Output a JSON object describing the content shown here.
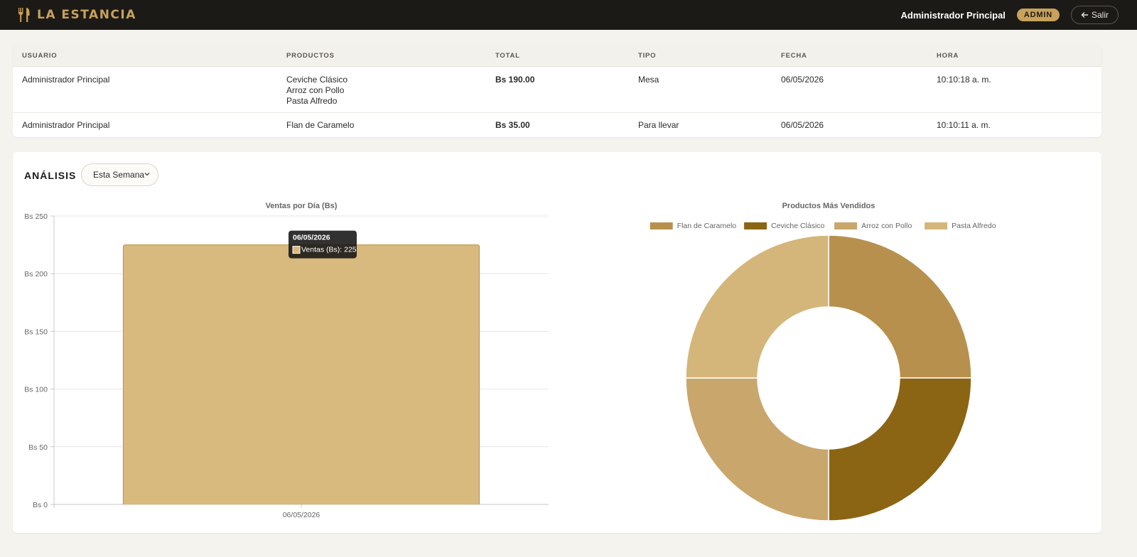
{
  "header": {
    "brand": "LA ESTANCIA",
    "brand_icon": "utensils-icon",
    "user_name": "Administrador Principal",
    "role": "ADMIN",
    "logout_label": "Salir",
    "logout_icon": "arrow-left-icon",
    "accent": "#c8a25a"
  },
  "orders": {
    "columns": [
      "USUARIO",
      "PRODUCTOS",
      "TOTAL",
      "TIPO",
      "FECHA",
      "HORA"
    ],
    "rows": [
      {
        "user": "Administrador Principal",
        "products": [
          "Ceviche Clásico",
          "Arroz con Pollo",
          "Pasta Alfredo"
        ],
        "total": "Bs 190.00",
        "type": "Mesa",
        "date": "06/05/2026",
        "time": "10:10:18 a. m."
      },
      {
        "user": "Administrador Principal",
        "products": [
          "Flan de Caramelo"
        ],
        "total": "Bs 35.00",
        "type": "Para llevar",
        "date": "06/05/2026",
        "time": "10:10:11 a. m."
      }
    ]
  },
  "analysis": {
    "title": "ANÁLISIS",
    "period": "Esta Semana"
  },
  "chart_data": [
    {
      "type": "bar",
      "title": "Ventas por Día (Bs)",
      "categories": [
        "06/05/2026"
      ],
      "series": [
        {
          "name": "Ventas (Bs)",
          "values": [
            225
          ]
        }
      ],
      "y_tick_prefix": "Bs ",
      "ylim": [
        0,
        250
      ],
      "y_ticks": [
        0,
        50,
        100,
        150,
        200,
        250
      ],
      "grid": true,
      "tooltip": {
        "title": "06/05/2026",
        "label": "Ventas (Bs)",
        "value": "225"
      },
      "colors": {
        "fill": "#d8b97e",
        "stroke": "#c09240"
      }
    },
    {
      "type": "pie",
      "title": "Productos Más Vendidos",
      "labels": [
        "Flan de Caramelo",
        "Ceviche Clásico",
        "Arroz con Pollo",
        "Pasta Alfredo"
      ],
      "values": [
        1,
        1,
        1,
        1
      ],
      "colors": [
        "#b8904e",
        "#8b6514",
        "#c9a66c",
        "#d4b67a"
      ],
      "legend": "top"
    }
  ]
}
